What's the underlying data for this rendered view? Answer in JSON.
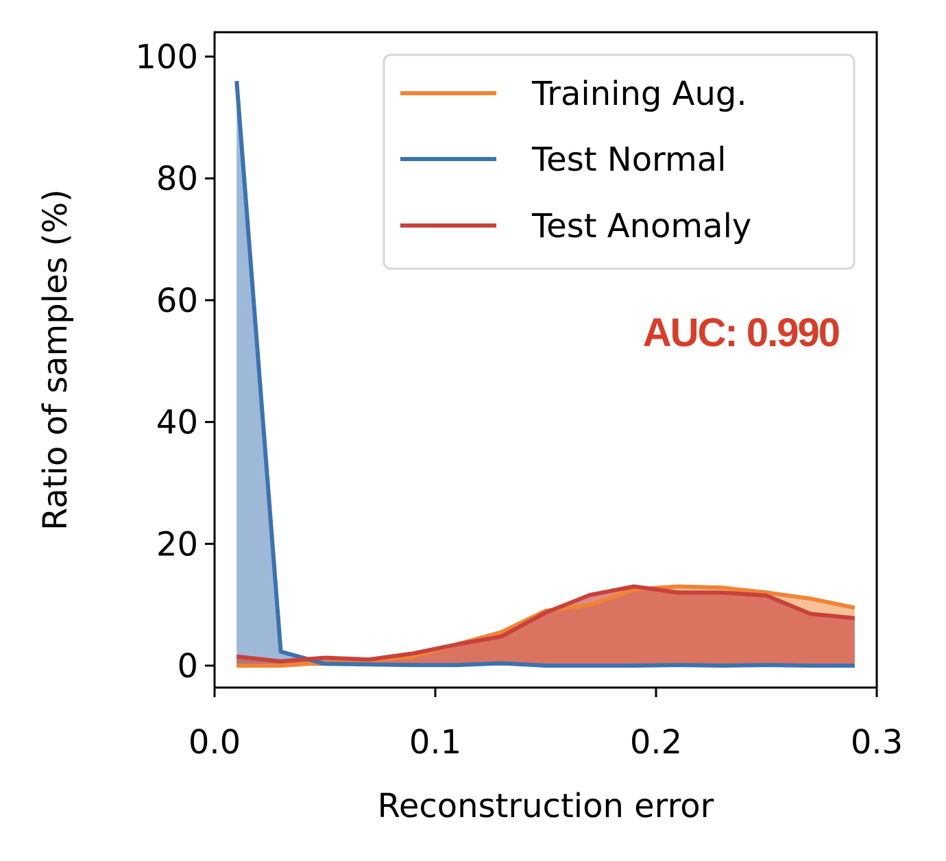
{
  "chart_data": {
    "type": "area",
    "xlabel": "Reconstruction error",
    "ylabel": "Ratio of samples (%)",
    "xlim": [
      0.0,
      0.3
    ],
    "ylim": [
      -3.6,
      104
    ],
    "x_ticks": [
      0.0,
      0.1,
      0.2,
      0.3
    ],
    "x_tick_labels": [
      "0.0",
      "0.1",
      "0.2",
      "0.3"
    ],
    "y_ticks": [
      0,
      20,
      40,
      60,
      80,
      100
    ],
    "y_tick_labels": [
      "0",
      "20",
      "40",
      "60",
      "80",
      "100"
    ],
    "grid": false,
    "legend_position": "top-right",
    "x": [
      0.01,
      0.03,
      0.05,
      0.07,
      0.09,
      0.11,
      0.13,
      0.15,
      0.17,
      0.19,
      0.21,
      0.23,
      0.25,
      0.27,
      0.29
    ],
    "series": [
      {
        "name": "Training Aug.",
        "color": "#ee8434",
        "fill_opacity": 0.5,
        "values": [
          0.0,
          0.0,
          0.5,
          0.8,
          1.5,
          3.5,
          5.5,
          9.0,
          10.0,
          12.5,
          13.0,
          12.8,
          12.0,
          11.0,
          9.5
        ]
      },
      {
        "name": "Test Normal",
        "color": "#3b73b0",
        "fill_opacity": 0.5,
        "values": [
          96.0,
          2.3,
          0.3,
          0.2,
          0.1,
          0.1,
          0.4,
          0.0,
          0.0,
          0.0,
          0.1,
          0.0,
          0.1,
          0.0,
          0.0
        ]
      },
      {
        "name": "Test Anomaly",
        "color": "#c8413a",
        "fill_opacity": 0.6,
        "values": [
          1.5,
          0.7,
          1.3,
          1.0,
          2.0,
          3.5,
          4.8,
          8.7,
          11.6,
          13.0,
          12.0,
          12.0,
          11.5,
          8.5,
          7.8
        ]
      }
    ],
    "annotation": {
      "text": "AUC: 0.990",
      "color": "#d93d28"
    }
  }
}
